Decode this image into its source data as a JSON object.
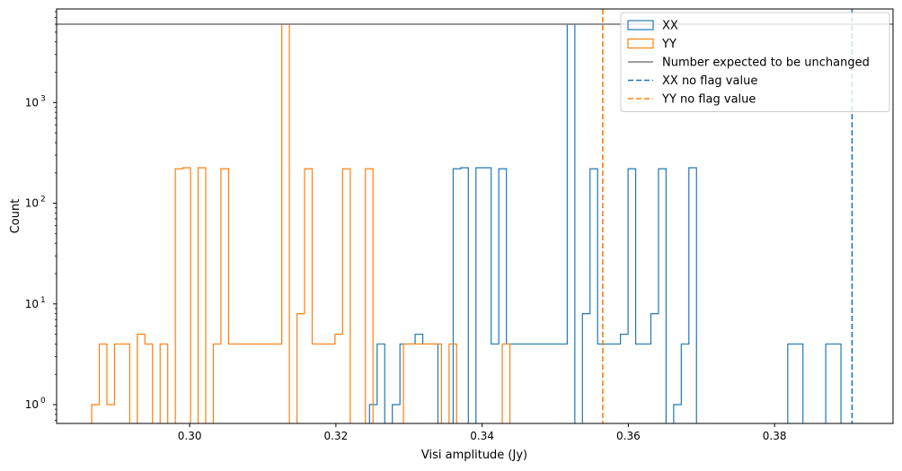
{
  "chart_data": {
    "type": "histogram",
    "xlabel": "Visi amplitude (Jy)",
    "ylabel": "Count",
    "xlim": [
      0.2818,
      0.3962
    ],
    "ylim": [
      0.65,
      8500
    ],
    "yscale": "log",
    "x_ticks": [
      {
        "value": 0.3,
        "label": "0.30"
      },
      {
        "value": 0.32,
        "label": "0.32"
      },
      {
        "value": 0.34,
        "label": "0.34"
      },
      {
        "value": 0.36,
        "label": "0.36"
      },
      {
        "value": 0.38,
        "label": "0.38"
      }
    ],
    "y_ticks": [
      {
        "value": 1,
        "base": "10",
        "exp": "0"
      },
      {
        "value": 10,
        "base": "10",
        "exp": "1"
      },
      {
        "value": 100,
        "base": "10",
        "exp": "2"
      },
      {
        "value": 1000,
        "base": "10",
        "exp": "3"
      }
    ],
    "bin_width": 0.00104,
    "series": [
      {
        "name": "XX",
        "color": "#1f77b4",
        "bins_start": 0.3246,
        "counts": [
          1,
          4,
          0,
          1,
          4,
          4,
          5,
          4,
          4,
          0,
          0,
          220,
          225,
          0,
          225,
          225,
          4,
          220,
          4,
          4,
          4,
          4,
          4,
          4,
          4,
          4,
          6000,
          0,
          8,
          220,
          4,
          4,
          4,
          5,
          220,
          4,
          4,
          8,
          220,
          0,
          1,
          4,
          225,
          0,
          0,
          0,
          0,
          0,
          0,
          0,
          0,
          0,
          0,
          0,
          0,
          4,
          4,
          0,
          0,
          0,
          4,
          4,
          0,
          0,
          0,
          0,
          0,
          0,
          0,
          0,
          0,
          1
        ]
      },
      {
        "name": "YY",
        "color": "#ff7f0e",
        "bins_start": 0.2866,
        "counts": [
          1,
          4,
          1,
          4,
          4,
          0,
          5,
          4,
          0,
          4,
          0,
          220,
          225,
          0,
          225,
          0,
          4,
          220,
          4,
          4,
          4,
          4,
          4,
          4,
          4,
          6000,
          0,
          8,
          220,
          4,
          4,
          4,
          5,
          220,
          0,
          0,
          220,
          0,
          0,
          0,
          0,
          4,
          4,
          4,
          4,
          4,
          0,
          4,
          0,
          0,
          0,
          0,
          0,
          0,
          4
        ]
      }
    ],
    "reference_lines": [
      {
        "name": "Number expected to be unchanged",
        "orientation": "horizontal",
        "value": 6000,
        "color": "#7f7f7f",
        "style": "solid"
      },
      {
        "name": "XX no flag value",
        "orientation": "vertical",
        "value": 0.3906,
        "color": "#1f77b4",
        "style": "dashed"
      },
      {
        "name": "YY no flag value",
        "orientation": "vertical",
        "value": 0.3565,
        "color": "#ff7f0e",
        "style": "dashed"
      }
    ],
    "legend_position": "top-right",
    "grid": false
  }
}
